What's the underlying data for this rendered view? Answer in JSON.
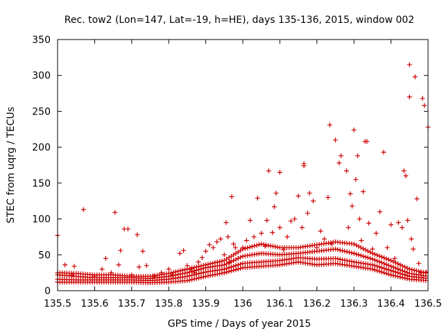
{
  "chart_data": {
    "type": "scatter",
    "title": "Rec. tow2 (Lon=147, Lat=-19, h=HE), days 135-136, 2015, window 002",
    "xlabel": "GPS time / Days of year 2015",
    "ylabel": "STEC from uqrg / TECUs",
    "xlim": [
      135.5,
      136.5
    ],
    "ylim": [
      0,
      350
    ],
    "xticks": [
      135.5,
      135.6,
      135.7,
      135.8,
      135.9,
      136,
      136.1,
      136.2,
      136.3,
      136.4,
      136.5
    ],
    "xtick_labels": [
      "135.5",
      "135.6",
      "135.7",
      "135.8",
      "135.9",
      "136",
      "136.1",
      "136.2",
      "136.3",
      "136.4",
      "136.5"
    ],
    "yticks": [
      0,
      50,
      100,
      150,
      200,
      250,
      300,
      350
    ],
    "ytick_labels": [
      "0",
      "50",
      "100",
      "150",
      "200",
      "250",
      "300",
      "350"
    ],
    "marker": "+",
    "color": "#cc0000",
    "series": [
      {
        "name": "STEC",
        "points": [
          [
            135.5,
            77
          ],
          [
            135.52,
            36
          ],
          [
            135.54,
            22
          ],
          [
            135.545,
            34
          ],
          [
            135.57,
            113
          ],
          [
            135.6,
            20
          ],
          [
            135.62,
            30
          ],
          [
            135.63,
            45
          ],
          [
            135.645,
            25
          ],
          [
            135.655,
            109
          ],
          [
            135.665,
            36
          ],
          [
            135.67,
            56
          ],
          [
            135.68,
            86
          ],
          [
            135.69,
            86
          ],
          [
            135.7,
            22
          ],
          [
            135.715,
            78
          ],
          [
            135.72,
            33
          ],
          [
            135.73,
            55
          ],
          [
            135.74,
            35
          ],
          [
            135.76,
            20
          ],
          [
            135.78,
            25
          ],
          [
            135.8,
            30
          ],
          [
            135.81,
            22
          ],
          [
            135.83,
            52
          ],
          [
            135.84,
            56
          ],
          [
            135.85,
            35
          ],
          [
            135.86,
            30
          ],
          [
            135.87,
            25
          ],
          [
            135.88,
            40
          ],
          [
            135.89,
            46
          ],
          [
            135.9,
            55
          ],
          [
            135.91,
            64
          ],
          [
            135.92,
            60
          ],
          [
            135.93,
            68
          ],
          [
            135.94,
            72
          ],
          [
            135.95,
            50
          ],
          [
            135.955,
            95
          ],
          [
            135.96,
            75
          ],
          [
            135.965,
            40
          ],
          [
            135.97,
            131
          ],
          [
            135.975,
            65
          ],
          [
            135.98,
            60
          ],
          [
            136.0,
            60
          ],
          [
            136.01,
            70
          ],
          [
            136.02,
            98
          ],
          [
            136.03,
            75
          ],
          [
            136.04,
            129
          ],
          [
            136.05,
            80
          ],
          [
            136.06,
            62
          ],
          [
            136.065,
            98
          ],
          [
            136.07,
            167
          ],
          [
            136.08,
            81
          ],
          [
            136.085,
            117
          ],
          [
            136.09,
            136
          ],
          [
            136.1,
            165
          ],
          [
            136.1,
            88
          ],
          [
            136.11,
            57
          ],
          [
            136.12,
            75
          ],
          [
            136.13,
            97
          ],
          [
            136.14,
            100
          ],
          [
            136.15,
            132
          ],
          [
            136.16,
            88
          ],
          [
            136.165,
            174
          ],
          [
            136.165,
            177
          ],
          [
            136.175,
            108
          ],
          [
            136.18,
            136
          ],
          [
            136.19,
            125
          ],
          [
            136.2,
            60
          ],
          [
            136.21,
            83
          ],
          [
            136.22,
            72
          ],
          [
            136.23,
            130
          ],
          [
            136.235,
            231
          ],
          [
            136.24,
            65
          ],
          [
            136.25,
            210
          ],
          [
            136.26,
            178
          ],
          [
            136.265,
            188
          ],
          [
            136.28,
            167
          ],
          [
            136.285,
            88
          ],
          [
            136.29,
            135
          ],
          [
            136.295,
            118
          ],
          [
            136.3,
            224
          ],
          [
            136.305,
            155
          ],
          [
            136.31,
            188
          ],
          [
            136.315,
            100
          ],
          [
            136.32,
            70
          ],
          [
            136.325,
            138
          ],
          [
            136.33,
            208
          ],
          [
            136.335,
            208
          ],
          [
            136.34,
            94
          ],
          [
            136.35,
            58
          ],
          [
            136.36,
            80
          ],
          [
            136.37,
            110
          ],
          [
            136.38,
            193
          ],
          [
            136.39,
            60
          ],
          [
            136.4,
            92
          ],
          [
            136.41,
            45
          ],
          [
            136.42,
            95
          ],
          [
            136.43,
            88
          ],
          [
            136.435,
            167
          ],
          [
            136.44,
            160
          ],
          [
            136.445,
            98
          ],
          [
            136.45,
            270
          ],
          [
            136.45,
            315
          ],
          [
            136.455,
            72
          ],
          [
            136.46,
            58
          ],
          [
            136.465,
            298
          ],
          [
            136.47,
            128
          ],
          [
            136.475,
            38
          ],
          [
            136.48,
            25
          ],
          [
            136.485,
            268
          ],
          [
            136.49,
            258
          ],
          [
            136.495,
            26
          ],
          [
            136.5,
            228
          ]
        ]
      },
      {
        "name": "STEC band",
        "bands": [
          {
            "x": [
              135.5,
              135.55,
              135.6,
              135.65,
              135.7,
              135.75,
              135.8,
              135.85,
              135.9,
              135.95,
              136.0,
              136.05,
              136.1,
              136.15,
              136.2,
              136.25,
              136.3,
              136.35,
              136.4,
              136.45,
              136.5
            ],
            "y": [
              12,
              12,
              12,
              12,
              12,
              11,
              12,
              14,
              20,
              25,
              32,
              34,
              36,
              40,
              36,
              38,
              34,
              30,
              22,
              16,
              14
            ]
          },
          {
            "x": [
              135.5,
              135.55,
              135.6,
              135.65,
              135.7,
              135.75,
              135.8,
              135.85,
              135.9,
              135.95,
              136.0,
              136.05,
              136.1,
              136.15,
              136.2,
              136.25,
              136.3,
              136.35,
              136.4,
              136.45,
              136.5
            ],
            "y": [
              16,
              15,
              15,
              15,
              15,
              14,
              16,
              20,
              26,
              30,
              38,
              40,
              42,
              46,
              44,
              45,
              40,
              36,
              28,
              20,
              17
            ]
          },
          {
            "x": [
              135.5,
              135.55,
              135.6,
              135.65,
              135.7,
              135.75,
              135.8,
              135.85,
              135.9,
              135.95,
              136.0,
              136.05,
              136.1,
              136.15,
              136.2,
              136.25,
              136.3,
              136.35,
              136.4,
              136.45,
              136.5
            ],
            "y": [
              22,
              20,
              18,
              18,
              18,
              17,
              20,
              25,
              32,
              36,
              48,
              52,
              50,
              52,
              55,
              58,
              52,
              44,
              34,
              24,
              20
            ]
          },
          {
            "x": [
              135.5,
              135.55,
              135.6,
              135.65,
              135.7,
              135.75,
              135.8,
              135.85,
              135.9,
              135.95,
              136.0,
              136.05,
              136.1,
              136.15,
              136.2,
              136.25,
              136.3,
              136.35,
              136.4,
              136.45,
              136.5
            ],
            "y": [
              25,
              24,
              22,
              22,
              20,
              20,
              24,
              30,
              36,
              42,
              58,
              65,
              60,
              60,
              64,
              68,
              65,
              52,
              42,
              30,
              24
            ]
          }
        ]
      }
    ]
  }
}
